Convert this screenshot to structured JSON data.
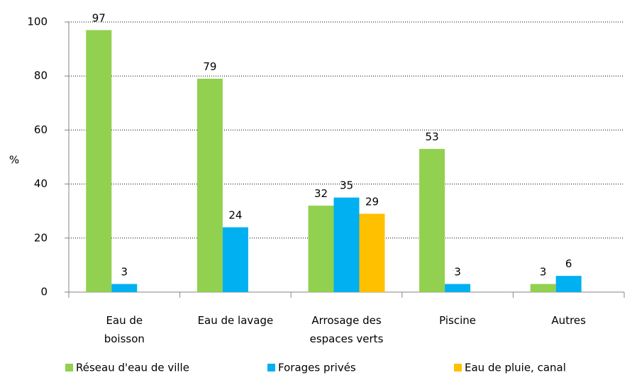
{
  "chart_data": {
    "type": "bar",
    "categories": [
      "Eau de boisson",
      "Eau de lavage",
      "Arrosage des espaces verts",
      "Piscine",
      "Autres"
    ],
    "series": [
      {
        "name": "Réseau d'eau de ville",
        "color": "#92d050",
        "values": [
          97,
          79,
          32,
          53,
          3
        ]
      },
      {
        "name": "Forages privés",
        "color": "#00b0f0",
        "values": [
          3,
          24,
          35,
          3,
          6
        ]
      },
      {
        "name": "Eau de pluie, canal",
        "color": "#ffc000",
        "values": [
          null,
          null,
          29,
          null,
          null
        ]
      }
    ],
    "y_label": "%",
    "ylim": [
      0,
      100
    ],
    "yticks": [
      0,
      20,
      40,
      60,
      80,
      100
    ],
    "grid": true,
    "legend": "bottom"
  }
}
